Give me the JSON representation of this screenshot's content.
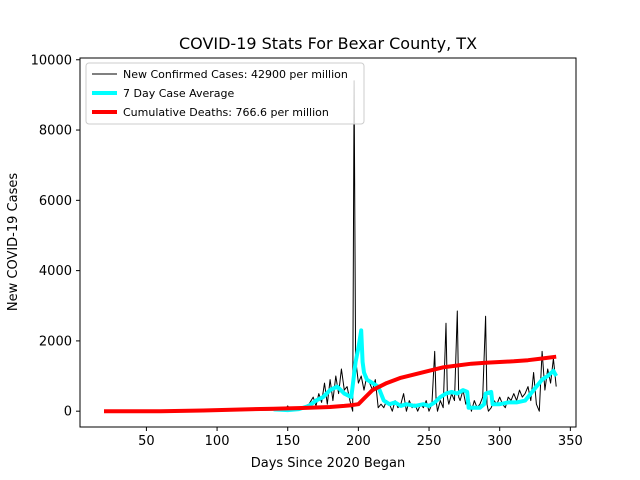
{
  "chart_data": {
    "type": "line",
    "title": "COVID-19 Stats For Bexar County, TX",
    "xlabel": "Days Since 2020 Began",
    "ylabel": "New COVID-19 Cases",
    "xlim": [
      3,
      354
    ],
    "ylim": [
      -450,
      10050
    ],
    "xticks": [
      50,
      100,
      150,
      200,
      250,
      300,
      350
    ],
    "yticks": [
      0,
      2000,
      4000,
      6000,
      8000,
      10000
    ],
    "grid": false,
    "legend_position": "top-left",
    "series": [
      {
        "name": "New Confirmed Cases: 42900 per million",
        "color": "#000000",
        "line_width": 1,
        "points": [
          [
            20,
            0
          ],
          [
            80,
            0
          ],
          [
            100,
            10
          ],
          [
            120,
            20
          ],
          [
            140,
            30
          ],
          [
            148,
            40
          ],
          [
            150,
            150
          ],
          [
            152,
            20
          ],
          [
            160,
            100
          ],
          [
            165,
            200
          ],
          [
            168,
            400
          ],
          [
            170,
            150
          ],
          [
            172,
            500
          ],
          [
            174,
            250
          ],
          [
            176,
            800
          ],
          [
            178,
            200
          ],
          [
            180,
            900
          ],
          [
            182,
            300
          ],
          [
            184,
            1000
          ],
          [
            186,
            500
          ],
          [
            188,
            1200
          ],
          [
            190,
            600
          ],
          [
            192,
            700
          ],
          [
            194,
            300
          ],
          [
            196,
            0
          ],
          [
            197,
            9400
          ],
          [
            198,
            1500
          ],
          [
            200,
            800
          ],
          [
            202,
            1000
          ],
          [
            204,
            600
          ],
          [
            206,
            1000
          ],
          [
            208,
            800
          ],
          [
            210,
            600
          ],
          [
            212,
            900
          ],
          [
            214,
            100
          ],
          [
            216,
            200
          ],
          [
            218,
            100
          ],
          [
            220,
            300
          ],
          [
            222,
            200
          ],
          [
            224,
            0
          ],
          [
            226,
            300
          ],
          [
            228,
            100
          ],
          [
            230,
            200
          ],
          [
            232,
            500
          ],
          [
            234,
            0
          ],
          [
            236,
            300
          ],
          [
            238,
            100
          ],
          [
            240,
            200
          ],
          [
            242,
            0
          ],
          [
            244,
            200
          ],
          [
            246,
            100
          ],
          [
            248,
            300
          ],
          [
            250,
            0
          ],
          [
            252,
            200
          ],
          [
            254,
            1700
          ],
          [
            255,
            300
          ],
          [
            256,
            0
          ],
          [
            258,
            300
          ],
          [
            260,
            100
          ],
          [
            262,
            2500
          ],
          [
            263,
            400
          ],
          [
            264,
            200
          ],
          [
            266,
            500
          ],
          [
            268,
            300
          ],
          [
            270,
            2850
          ],
          [
            271,
            400
          ],
          [
            272,
            300
          ],
          [
            274,
            600
          ],
          [
            276,
            200
          ],
          [
            278,
            400
          ],
          [
            280,
            0
          ],
          [
            282,
            300
          ],
          [
            284,
            100
          ],
          [
            286,
            200
          ],
          [
            288,
            400
          ],
          [
            290,
            2700
          ],
          [
            291,
            200
          ],
          [
            292,
            0
          ],
          [
            294,
            100
          ],
          [
            296,
            300
          ],
          [
            298,
            200
          ],
          [
            300,
            400
          ],
          [
            302,
            200
          ],
          [
            304,
            100
          ],
          [
            306,
            400
          ],
          [
            308,
            300
          ],
          [
            310,
            500
          ],
          [
            312,
            300
          ],
          [
            314,
            600
          ],
          [
            316,
            400
          ],
          [
            318,
            500
          ],
          [
            320,
            700
          ],
          [
            322,
            300
          ],
          [
            324,
            1100
          ],
          [
            326,
            200
          ],
          [
            328,
            0
          ],
          [
            330,
            1700
          ],
          [
            332,
            600
          ],
          [
            334,
            1200
          ],
          [
            336,
            800
          ],
          [
            338,
            1500
          ],
          [
            340,
            700
          ]
        ]
      },
      {
        "name": "7 Day Case Average",
        "color": "#00ffff",
        "line_width": 4,
        "points": [
          [
            140,
            50
          ],
          [
            150,
            30
          ],
          [
            158,
            60
          ],
          [
            165,
            150
          ],
          [
            170,
            300
          ],
          [
            175,
            400
          ],
          [
            180,
            600
          ],
          [
            185,
            700
          ],
          [
            190,
            500
          ],
          [
            195,
            400
          ],
          [
            198,
            1400
          ],
          [
            200,
            1800
          ],
          [
            202,
            2300
          ],
          [
            203,
            1400
          ],
          [
            204,
            1100
          ],
          [
            206,
            900
          ],
          [
            210,
            800
          ],
          [
            214,
            700
          ],
          [
            218,
            300
          ],
          [
            222,
            200
          ],
          [
            226,
            250
          ],
          [
            230,
            150
          ],
          [
            234,
            200
          ],
          [
            240,
            150
          ],
          [
            246,
            200
          ],
          [
            250,
            150
          ],
          [
            254,
            250
          ],
          [
            258,
            400
          ],
          [
            262,
            500
          ],
          [
            266,
            550
          ],
          [
            270,
            500
          ],
          [
            274,
            600
          ],
          [
            277,
            550
          ],
          [
            278,
            100
          ],
          [
            282,
            100
          ],
          [
            286,
            100
          ],
          [
            289,
            200
          ],
          [
            290,
            500
          ],
          [
            294,
            550
          ],
          [
            295,
            200
          ],
          [
            300,
            200
          ],
          [
            306,
            250
          ],
          [
            312,
            250
          ],
          [
            318,
            300
          ],
          [
            322,
            500
          ],
          [
            326,
            700
          ],
          [
            330,
            900
          ],
          [
            334,
            1000
          ],
          [
            338,
            1150
          ],
          [
            340,
            1000
          ]
        ]
      },
      {
        "name": "Cumulative Deaths: 766.6 per million",
        "color": "#ff0000",
        "line_width": 4,
        "points": [
          [
            20,
            0
          ],
          [
            40,
            0
          ],
          [
            60,
            0
          ],
          [
            80,
            10
          ],
          [
            90,
            20
          ],
          [
            100,
            30
          ],
          [
            120,
            50
          ],
          [
            140,
            70
          ],
          [
            160,
            90
          ],
          [
            180,
            120
          ],
          [
            190,
            150
          ],
          [
            195,
            170
          ],
          [
            200,
            200
          ],
          [
            205,
            400
          ],
          [
            210,
            600
          ],
          [
            215,
            700
          ],
          [
            220,
            800
          ],
          [
            230,
            950
          ],
          [
            240,
            1050
          ],
          [
            250,
            1150
          ],
          [
            260,
            1250
          ],
          [
            270,
            1300
          ],
          [
            280,
            1350
          ],
          [
            290,
            1380
          ],
          [
            300,
            1400
          ],
          [
            310,
            1420
          ],
          [
            320,
            1450
          ],
          [
            330,
            1500
          ],
          [
            340,
            1550
          ]
        ]
      }
    ]
  }
}
